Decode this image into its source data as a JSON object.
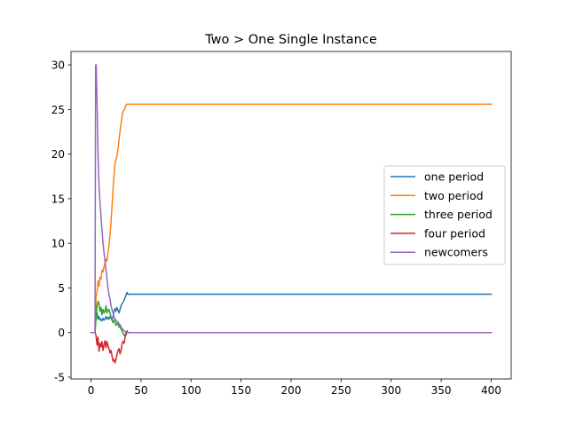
{
  "chart_data": {
    "type": "line",
    "title": "Two > One Single Instance",
    "xlabel": "",
    "ylabel": "",
    "xlim": [
      -20,
      420
    ],
    "ylim": [
      -5.2,
      31.5
    ],
    "xticks": [
      0,
      50,
      100,
      150,
      200,
      250,
      300,
      350,
      400
    ],
    "yticks": [
      -5,
      0,
      5,
      10,
      15,
      20,
      25,
      30
    ],
    "grid": false,
    "legend_position": "center-right",
    "series": [
      {
        "name": "one period",
        "color": "#1f77b4",
        "points": [
          [
            0,
            0
          ],
          [
            4,
            0
          ],
          [
            5,
            2
          ],
          [
            6,
            2.2
          ],
          [
            7,
            1.5
          ],
          [
            8,
            1.8
          ],
          [
            9,
            1.4
          ],
          [
            10,
            1.5
          ],
          [
            11,
            1.3
          ],
          [
            12,
            1.6
          ],
          [
            13,
            1.4
          ],
          [
            14,
            1.5
          ],
          [
            15,
            1.8
          ],
          [
            16,
            1.5
          ],
          [
            17,
            1.7
          ],
          [
            18,
            1.5
          ],
          [
            19,
            1.8
          ],
          [
            20,
            1.6
          ],
          [
            21,
            1.4
          ],
          [
            22,
            1.8
          ],
          [
            23,
            2.3
          ],
          [
            24,
            2.7
          ],
          [
            25,
            2.4
          ],
          [
            26,
            2.8
          ],
          [
            27,
            2.5
          ],
          [
            28,
            2.2
          ],
          [
            29,
            2.6
          ],
          [
            30,
            3.0
          ],
          [
            31,
            3.2
          ],
          [
            32,
            3.4
          ],
          [
            33,
            3.6
          ],
          [
            34,
            3.9
          ],
          [
            35,
            4.2
          ],
          [
            36,
            4.5
          ],
          [
            37,
            4.3
          ],
          [
            400,
            4.3
          ]
        ]
      },
      {
        "name": "two period",
        "color": "#ff7f0e",
        "points": [
          [
            0,
            0
          ],
          [
            4,
            0
          ],
          [
            5,
            4
          ],
          [
            6,
            4.6
          ],
          [
            7,
            5.8
          ],
          [
            8,
            5.2
          ],
          [
            9,
            6.2
          ],
          [
            10,
            6.0
          ],
          [
            11,
            7.0
          ],
          [
            12,
            6.8
          ],
          [
            13,
            7.4
          ],
          [
            14,
            7.8
          ],
          [
            15,
            8.2
          ],
          [
            16,
            8.0
          ],
          [
            17,
            9.0
          ],
          [
            18,
            9.8
          ],
          [
            19,
            11.0
          ],
          [
            20,
            12.4
          ],
          [
            21,
            14.2
          ],
          [
            22,
            16.0
          ],
          [
            23,
            17.6
          ],
          [
            24,
            19.0
          ],
          [
            25,
            19.4
          ],
          [
            26,
            19.8
          ],
          [
            27,
            20.6
          ],
          [
            28,
            21.6
          ],
          [
            29,
            22.6
          ],
          [
            30,
            23.4
          ],
          [
            31,
            24.2
          ],
          [
            32,
            24.8
          ],
          [
            33,
            24.9
          ],
          [
            34,
            25.2
          ],
          [
            35,
            25.5
          ],
          [
            36,
            25.6
          ],
          [
            400,
            25.6
          ]
        ]
      },
      {
        "name": "three period",
        "color": "#2ca02c",
        "points": [
          [
            0,
            0
          ],
          [
            4,
            0
          ],
          [
            5,
            1.5
          ],
          [
            6,
            3.0
          ],
          [
            7,
            3.5
          ],
          [
            8,
            3.2
          ],
          [
            9,
            2.4
          ],
          [
            10,
            2.8
          ],
          [
            11,
            2.0
          ],
          [
            12,
            2.6
          ],
          [
            13,
            2.2
          ],
          [
            14,
            2.4
          ],
          [
            15,
            3.0
          ],
          [
            16,
            2.2
          ],
          [
            17,
            2.5
          ],
          [
            18,
            2.6
          ],
          [
            19,
            2.2
          ],
          [
            20,
            1.7
          ],
          [
            21,
            1.4
          ],
          [
            22,
            1.1
          ],
          [
            23,
            1.4
          ],
          [
            24,
            1.2
          ],
          [
            25,
            0.8
          ],
          [
            26,
            0.9
          ],
          [
            27,
            1.2
          ],
          [
            28,
            0.6
          ],
          [
            29,
            0.7
          ],
          [
            30,
            0.4
          ],
          [
            31,
            0.2
          ],
          [
            32,
            -0.1
          ],
          [
            33,
            -0.3
          ],
          [
            34,
            -0.4
          ],
          [
            35,
            0.0
          ],
          [
            36,
            0.2
          ],
          [
            37,
            0
          ],
          [
            400,
            0
          ]
        ]
      },
      {
        "name": "four period",
        "color": "#d62728",
        "points": [
          [
            0,
            0
          ],
          [
            4,
            0
          ],
          [
            5,
            -0.3
          ],
          [
            6,
            -1.4
          ],
          [
            7,
            -0.5
          ],
          [
            8,
            -2.1
          ],
          [
            9,
            -1.2
          ],
          [
            10,
            -1.6
          ],
          [
            11,
            -1.0
          ],
          [
            12,
            -2.0
          ],
          [
            13,
            -1.4
          ],
          [
            14,
            -0.9
          ],
          [
            15,
            -1.7
          ],
          [
            16,
            -1.0
          ],
          [
            17,
            -1.5
          ],
          [
            18,
            -1.8
          ],
          [
            19,
            -2.3
          ],
          [
            20,
            -2.0
          ],
          [
            21,
            -2.6
          ],
          [
            22,
            -3.2
          ],
          [
            23,
            -3.0
          ],
          [
            24,
            -3.4
          ],
          [
            25,
            -3.0
          ],
          [
            26,
            -2.4
          ],
          [
            27,
            -2.0
          ],
          [
            28,
            -1.8
          ],
          [
            29,
            -2.4
          ],
          [
            30,
            -2.0
          ],
          [
            31,
            -1.3
          ],
          [
            32,
            -1.0
          ],
          [
            33,
            -1.2
          ],
          [
            34,
            -0.6
          ],
          [
            35,
            -0.2
          ],
          [
            36,
            0
          ],
          [
            400,
            0
          ]
        ]
      },
      {
        "name": "newcomers",
        "color": "#9467bd",
        "points": [
          [
            0,
            0
          ],
          [
            3,
            0
          ],
          [
            4,
            0
          ],
          [
            4.6,
            30
          ],
          [
            5.2,
            30
          ],
          [
            6,
            26
          ],
          [
            7,
            20
          ],
          [
            8,
            16.5
          ],
          [
            9,
            14.5
          ],
          [
            10,
            13
          ],
          [
            11,
            11.5
          ],
          [
            12,
            10
          ],
          [
            13,
            9
          ],
          [
            14,
            8
          ],
          [
            15,
            7
          ],
          [
            16,
            6
          ],
          [
            17,
            5
          ],
          [
            18,
            4.2
          ],
          [
            19,
            3.8
          ],
          [
            20,
            3.0
          ],
          [
            21,
            2.6
          ],
          [
            22,
            2.2
          ],
          [
            23,
            1.8
          ],
          [
            24,
            1.5
          ],
          [
            25,
            1.4
          ],
          [
            26,
            1.2
          ],
          [
            27,
            1.1
          ],
          [
            28,
            1.0
          ],
          [
            29,
            0.9
          ],
          [
            30,
            0.6
          ],
          [
            31,
            0.5
          ],
          [
            32,
            0.3
          ],
          [
            33,
            0.2
          ],
          [
            34,
            0.1
          ],
          [
            35,
            0.05
          ],
          [
            36,
            0
          ],
          [
            400,
            0
          ]
        ]
      }
    ]
  }
}
